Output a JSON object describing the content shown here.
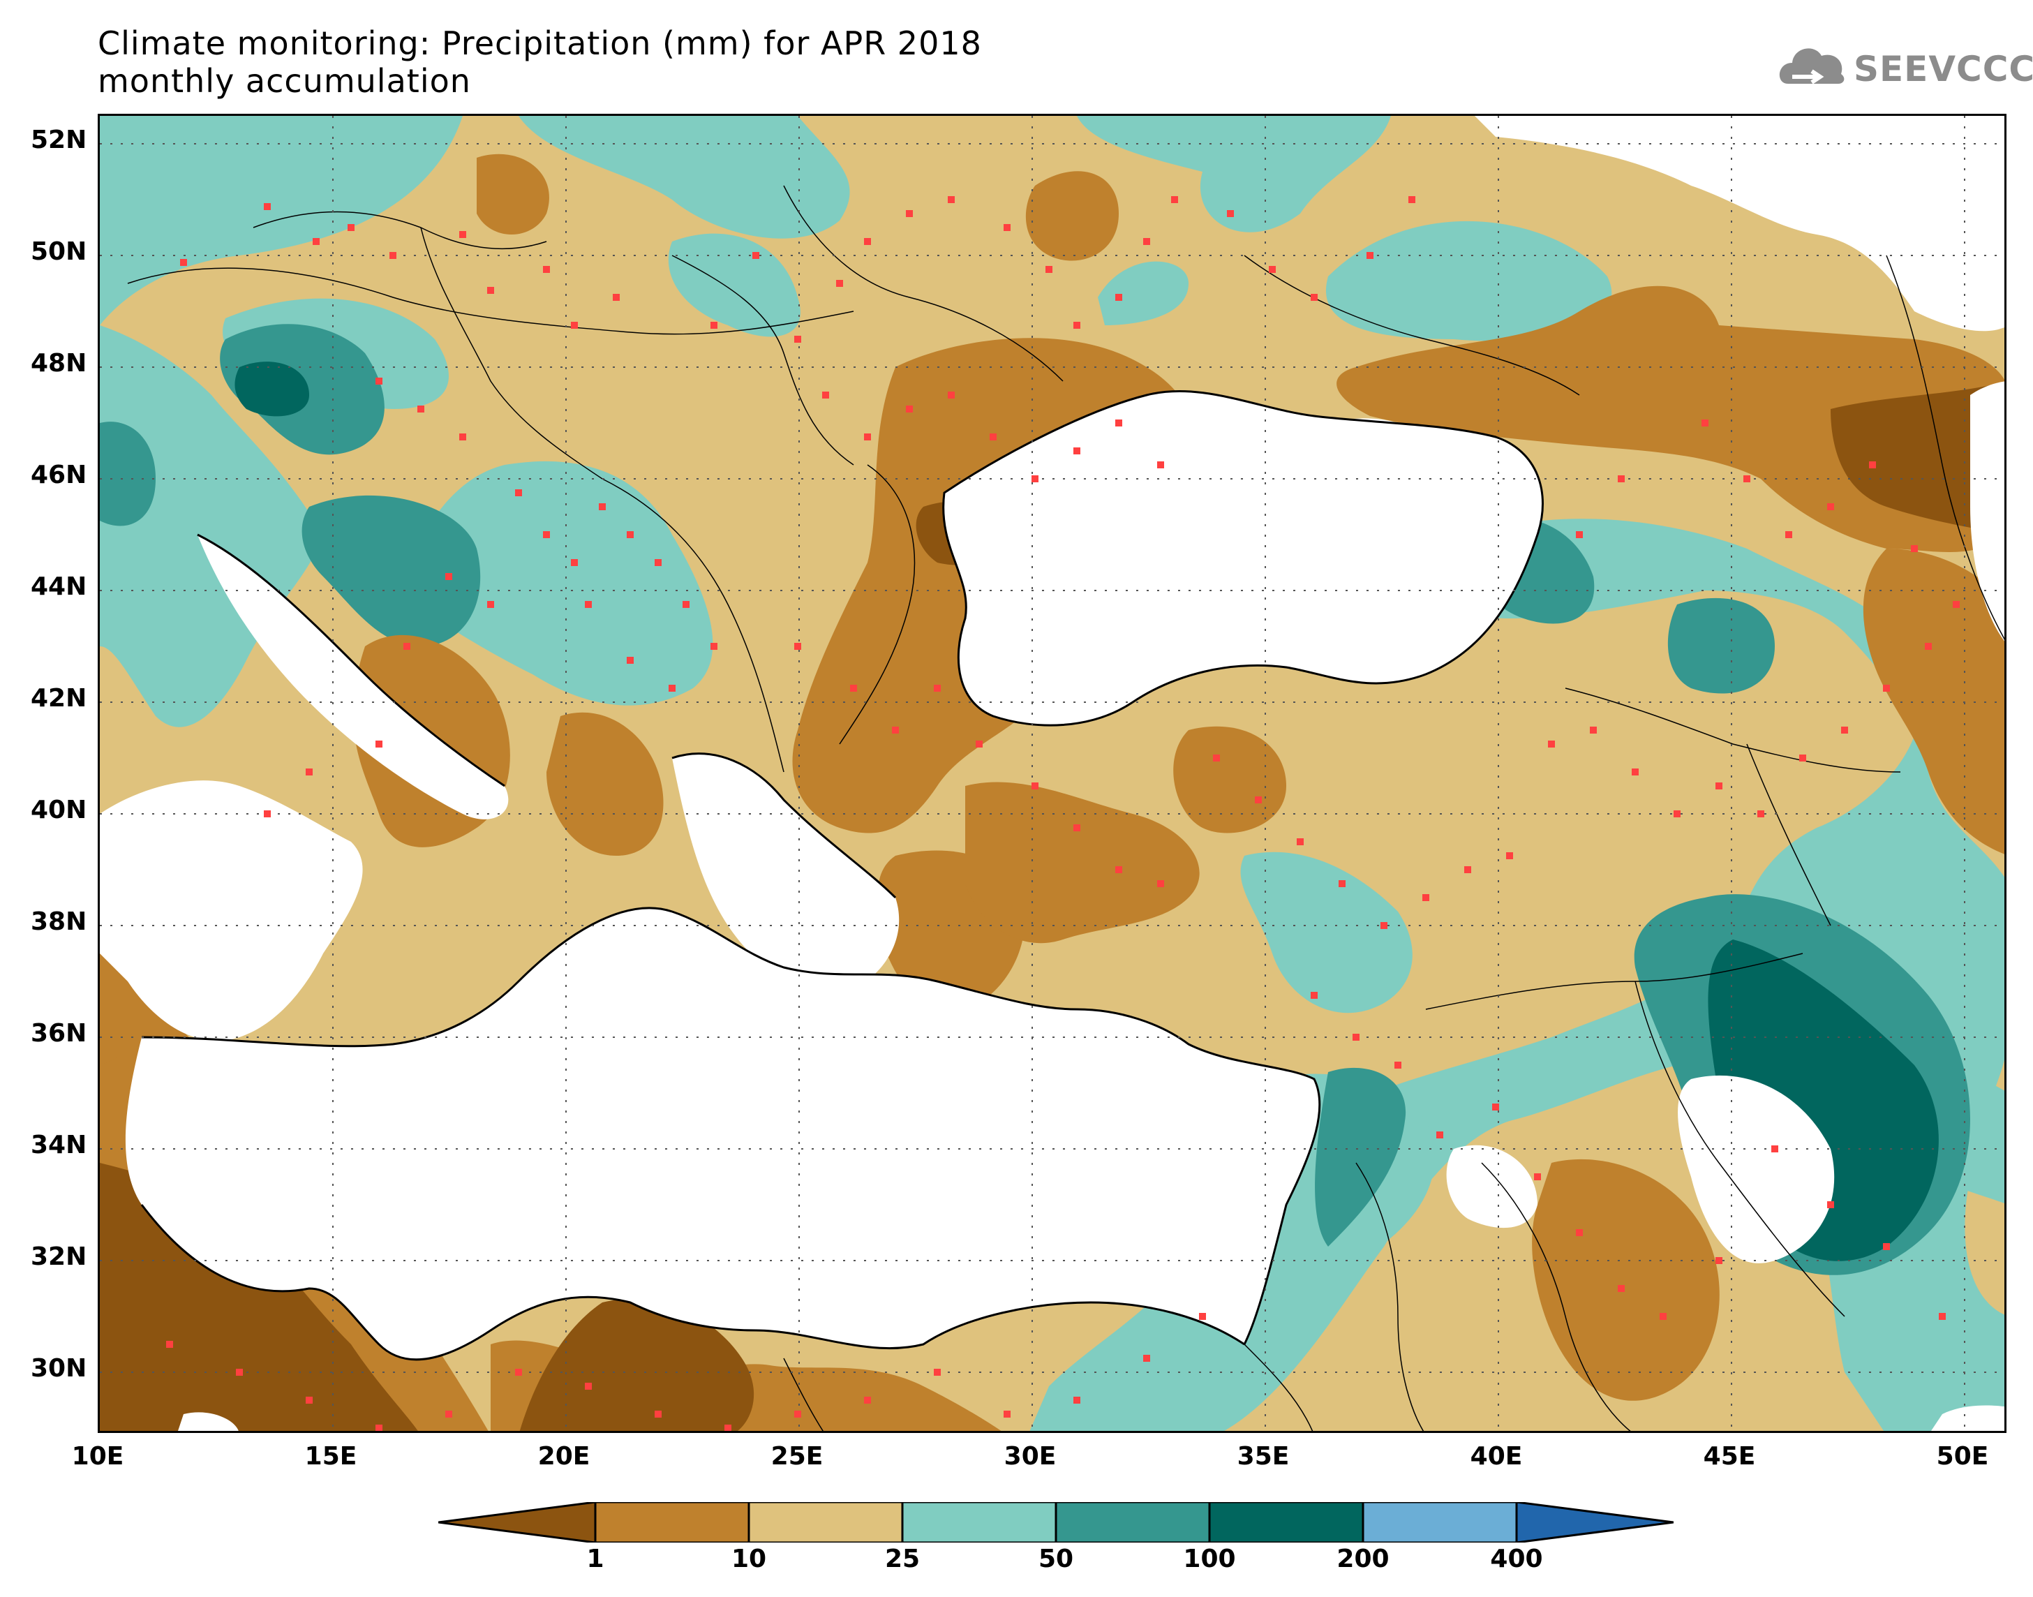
{
  "title": {
    "line1": "Climate monitoring: Precipitation (mm) for APR 2018",
    "line2": "monthly accumulation"
  },
  "logo": {
    "text": "SEEVCCC",
    "icon": "cloud-icon"
  },
  "map": {
    "lon_range": [
      10,
      51
    ],
    "lat_range": [
      29,
      52.6
    ],
    "lat_ticks": [
      "52N",
      "50N",
      "48N",
      "46N",
      "44N",
      "42N",
      "40N",
      "38N",
      "36N",
      "34N",
      "32N",
      "30N"
    ],
    "lon_ticks": [
      "10E",
      "15E",
      "20E",
      "25E",
      "30E",
      "35E",
      "40E",
      "45E",
      "50E"
    ],
    "gridlines": "dotted",
    "station_marker_color": "#ff4040",
    "sea_color": "#ffffff"
  },
  "legend": {
    "type": "colorbar",
    "bins": [
      {
        "range": "<1",
        "color": "#8c5410"
      },
      {
        "range": "1-10",
        "color": "#bf812d"
      },
      {
        "range": "10-25",
        "color": "#dfc27d"
      },
      {
        "range": "25-50",
        "color": "#80cdc1"
      },
      {
        "range": "50-100",
        "color": "#35978f"
      },
      {
        "range": "100-200",
        "color": "#01665e"
      },
      {
        "range": "200-400",
        "color": "#6baed6"
      },
      {
        "range": ">400",
        "color": "#2166ac"
      }
    ],
    "labels": [
      "1",
      "10",
      "25",
      "50",
      "100",
      "200",
      "400"
    ]
  }
}
